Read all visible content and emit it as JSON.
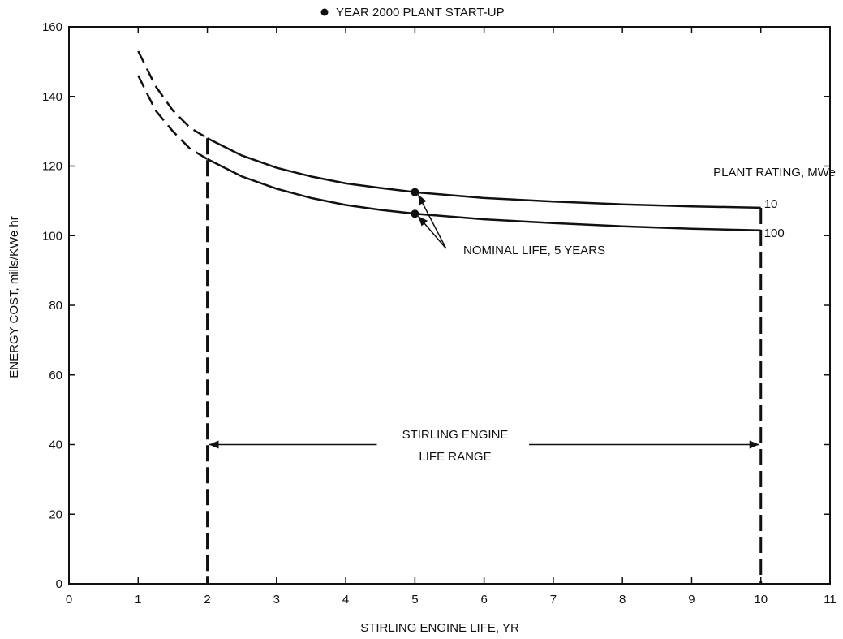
{
  "chart_data": {
    "type": "line",
    "title": "YEAR 2000 PLANT START-UP",
    "xlabel": "STIRLING ENGINE LIFE, YR",
    "ylabel": "ENERGY COST, mills/KWe hr",
    "xlim": [
      0,
      11
    ],
    "ylim": [
      0,
      160
    ],
    "xticks": [
      0,
      1,
      2,
      3,
      4,
      5,
      6,
      7,
      8,
      9,
      10,
      11
    ],
    "yticks": [
      0,
      20,
      40,
      60,
      80,
      100,
      120,
      140,
      160
    ],
    "grid": false,
    "legend_title": "PLANT RATING, MWe",
    "series": [
      {
        "name": "10",
        "x": [
          1,
          1.25,
          1.5,
          1.75,
          2,
          2.5,
          3,
          3.5,
          4,
          4.5,
          5,
          6,
          7,
          8,
          9,
          10
        ],
        "y": [
          153,
          143,
          136,
          131,
          128,
          123,
          119.5,
          117,
          115,
          113.7,
          112.5,
          110.8,
          109.8,
          109,
          108.4,
          108
        ],
        "dashed_below_x": 2
      },
      {
        "name": "100",
        "x": [
          1,
          1.25,
          1.5,
          1.75,
          2,
          2.5,
          3,
          3.5,
          4,
          4.5,
          5,
          6,
          7,
          8,
          9,
          10
        ],
        "y": [
          146,
          136,
          130,
          125,
          122,
          117,
          113.5,
          110.8,
          108.8,
          107.4,
          106.3,
          104.7,
          103.6,
          102.7,
          102,
          101.5
        ],
        "dashed_below_x": 2
      }
    ],
    "nominal_points": [
      {
        "series": "10",
        "x": 5,
        "y": 112.5
      },
      {
        "series": "100",
        "x": 5,
        "y": 106.3
      }
    ],
    "life_range": {
      "from": 2,
      "to": 10,
      "label_line1": "STIRLING ENGINE",
      "label_line2": "LIFE RANGE",
      "arrow_y": 40
    },
    "annotations": {
      "nominal_label": "NOMINAL LIFE, 5 YEARS",
      "legend_marker": "●"
    }
  }
}
